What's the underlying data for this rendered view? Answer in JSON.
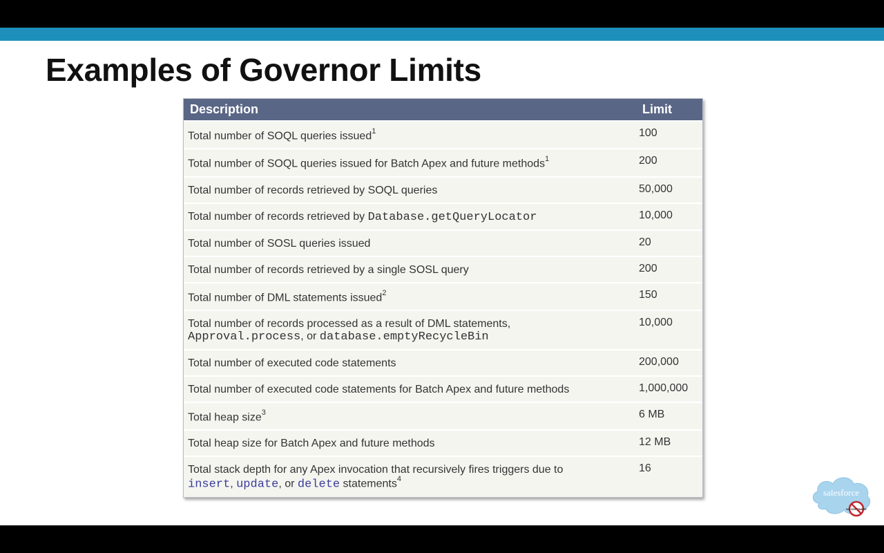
{
  "slide": {
    "title": "Examples of Governor Limits"
  },
  "table": {
    "headers": {
      "description": "Description",
      "limit": "Limit"
    },
    "rows": [
      {
        "parts": [
          "Total number of SOQL queries issued"
        ],
        "sup": "1",
        "limit": "100"
      },
      {
        "parts": [
          "Total number of SOQL queries issued for Batch Apex and future methods"
        ],
        "sup": "1",
        "limit": "200"
      },
      {
        "parts": [
          "Total number of records retrieved by SOQL queries"
        ],
        "limit": "50,000"
      },
      {
        "parts": [
          "Total number of records retrieved by ",
          "Database.getQueryLocator"
        ],
        "limit": "10,000"
      },
      {
        "parts": [
          "Total number of SOSL queries issued"
        ],
        "limit": "20"
      },
      {
        "parts": [
          "Total number of records retrieved by a single SOSL query"
        ],
        "limit": "200"
      },
      {
        "parts": [
          "Total number of DML statements issued"
        ],
        "sup": "2",
        "limit": "150"
      },
      {
        "parts": [
          "Total number of records processed as a result of DML statements,",
          "Approval.process",
          ", or ",
          "database.emptyRecycleBin"
        ],
        "limit": "10,000"
      },
      {
        "parts": [
          "Total number of executed code statements"
        ],
        "limit": "200,000"
      },
      {
        "parts": [
          "Total number of executed code statements for Batch Apex and future methods"
        ],
        "limit": "1,000,000"
      },
      {
        "parts": [
          "Total heap size"
        ],
        "sup": "3",
        "limit": "6 MB"
      },
      {
        "parts": [
          "Total heap size for Batch Apex and future methods"
        ],
        "limit": "12 MB"
      },
      {
        "parts": [
          "Total stack depth for any Apex invocation that recursively fires triggers due to",
          "insert",
          ", ",
          "update",
          ", or ",
          "delete",
          " statements"
        ],
        "sup": "4",
        "limit": "16"
      }
    ]
  },
  "logo": {
    "text": "salesforce",
    "badge": "NO SOFTWARE"
  },
  "colors": {
    "accent_bar": "#1d8fba",
    "header_bg": "#5a6686",
    "cloud": "#a8d4ee"
  }
}
